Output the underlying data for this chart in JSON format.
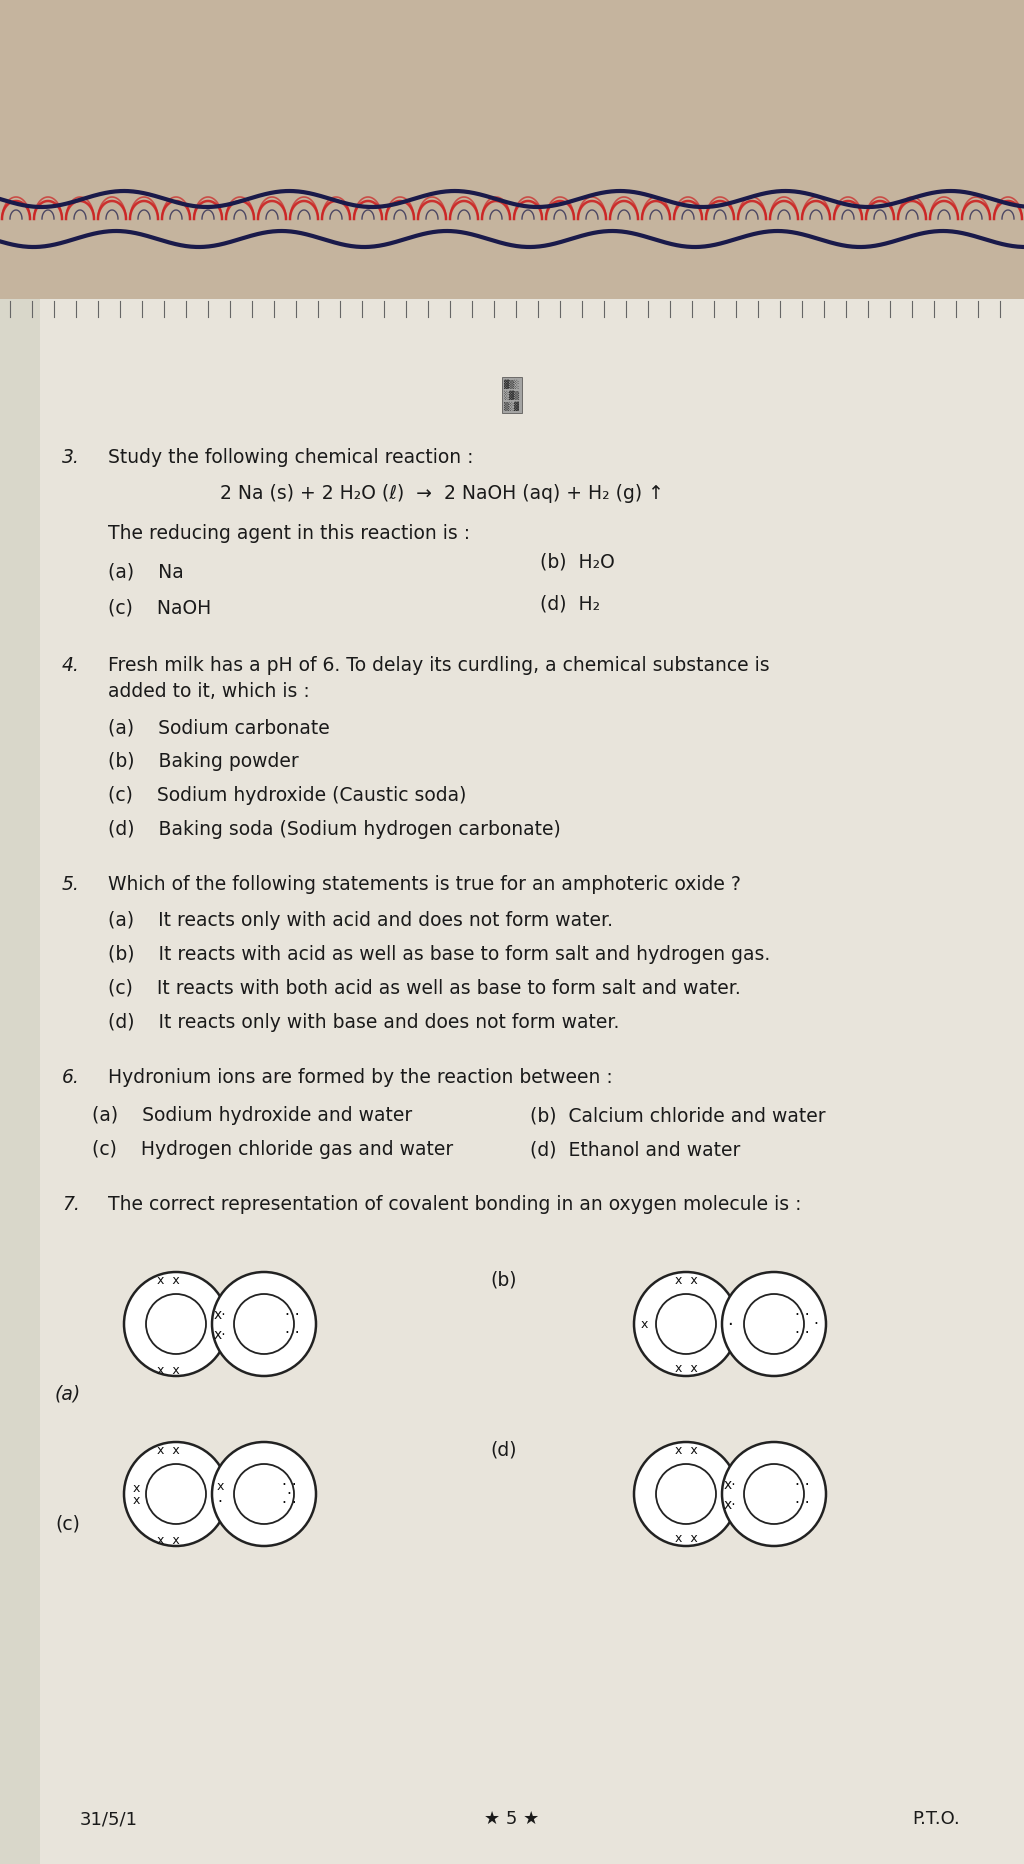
{
  "bg_fabric_color": "#c5b49e",
  "bg_paper_color": "#dbd5c8",
  "paper_white": "#e8e4db",
  "text_color": "#1a1a1a",
  "fabric_navy": "#1a1a4a",
  "fabric_red": "#cc2222",
  "q3_num": "3.",
  "q3_intro": "Study the following chemical reaction :",
  "q3_equation": "2 Na (s) + 2 H₂O (ℓ)  →  2 NaOH (aq) + H₂ (g) ↑",
  "q3_stem": "The reducing agent in this reaction is :",
  "q3_a": "(a)    Na",
  "q3_b": "(b)  H₂O",
  "q3_c": "(c)    NaOH",
  "q3_d": "(d)  H₂",
  "q4_num": "4.",
  "q4_line1": "Fresh milk has a pH of 6. To delay its curdling, a chemical substance is",
  "q4_line2": "added to it, which is :",
  "q4_a": "(a)    Sodium carbonate",
  "q4_b": "(b)    Baking powder",
  "q4_c": "(c)    Sodium hydroxide (Caustic soda)",
  "q4_d": "(d)    Baking soda (Sodium hydrogen carbonate)",
  "q5_num": "5.",
  "q5_stem": "Which of the following statements is true for an amphoteric oxide ?",
  "q5_a": "(a)    It reacts only with acid and does not form water.",
  "q5_b": "(b)    It reacts with acid as well as base to form salt and hydrogen gas.",
  "q5_c": "(c)    It reacts with both acid as well as base to form salt and water.",
  "q5_d": "(d)    It reacts only with base and does not form water.",
  "q6_num": "6.",
  "q6_stem": "Hydronium ions are formed by the reaction between :",
  "q6_a": "(a)    Sodium hydroxide and water",
  "q6_b": "(b)  Calcium chloride and water",
  "q6_c": "(c)    Hydrogen chloride gas and water",
  "q6_d": "(d)  Ethanol and water",
  "q7_num": "7.",
  "q7_stem": "The correct representation of covalent bonding in an oxygen molecule is :",
  "footer_left": "31/5/1",
  "footer_center": "★ 5 ★",
  "footer_right": "P.T.O."
}
